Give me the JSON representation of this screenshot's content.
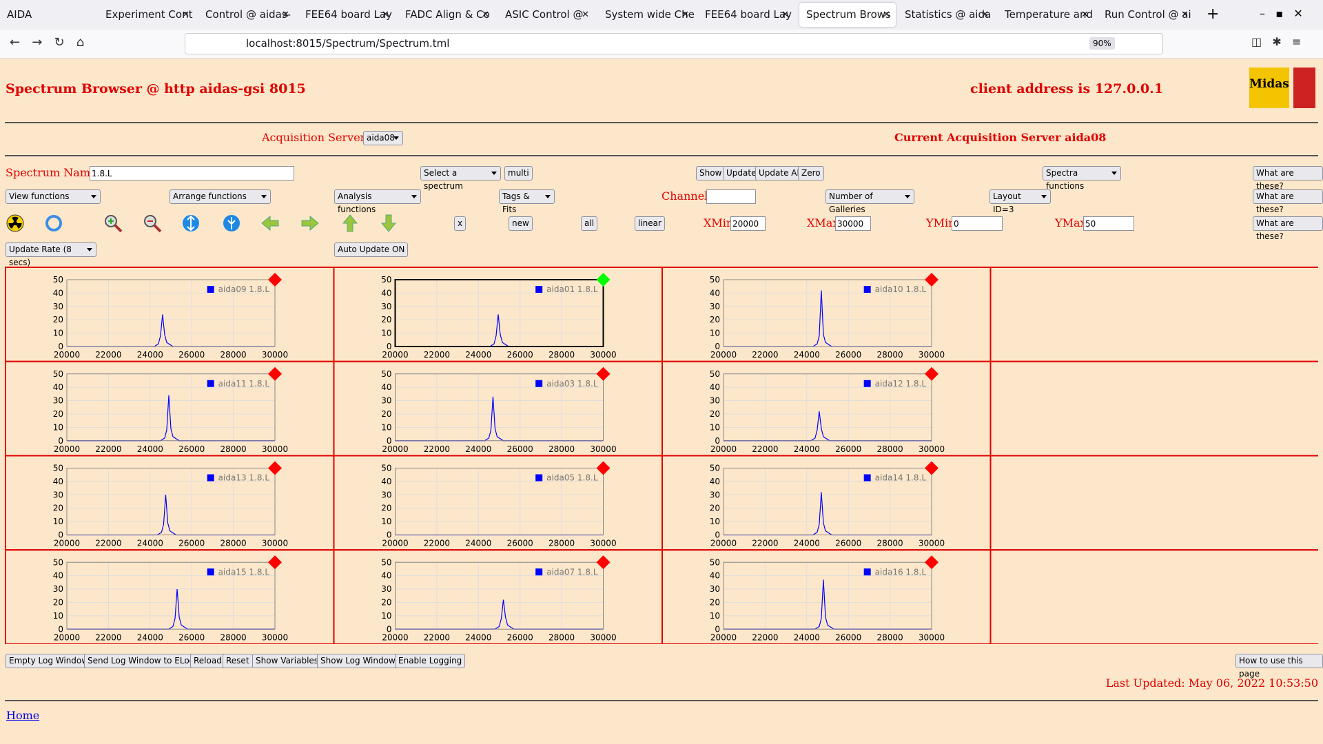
{
  "browser": {
    "tabs": [
      "AIDA",
      "Experiment Cont",
      "Control @ aidas-",
      "FEE64 board Lay",
      "FADC Align & Co",
      "ASIC Control @",
      "System wide Che",
      "FEE64 board Lay",
      "Spectrum Brows",
      "Statistics @ aida",
      "Temperature and",
      "Run Control @ ai"
    ],
    "url": "localhost:8015/Spectrum/Spectrum.tml",
    "zoom": "90%"
  },
  "header": {
    "title": "Spectrum Browser @ http aidas-gsi 8015",
    "client": "client address is 127.0.0.1",
    "logo": "Midas"
  },
  "servers": {
    "label": "Acquisition Servers",
    "selected": "aida08",
    "current": "Current Acquisition Server aida08"
  },
  "controls": {
    "spectrum_name_label": "Spectrum Name:",
    "spectrum_name": "1.8.L",
    "select_spectrum": "Select a spectrum",
    "multi": "multi",
    "show": "Show",
    "update": "Update",
    "update_all": "Update All",
    "zero": "Zero",
    "spectra_functions": "Spectra functions",
    "help": "What are these?",
    "view_functions": "View functions",
    "arrange_functions": "Arrange functions",
    "analysis_functions": "Analysis functions",
    "tags_fits": "Tags & Fits",
    "channel_label": "Channel:",
    "galleries": "Number of Galleries",
    "layout": "Layout ID=3",
    "x": "x",
    "new": "new",
    "all": "all",
    "linear": "linear",
    "xmin_label": "XMin",
    "xmin": 20000,
    "xmax_label": "XMax",
    "xmax": 30000,
    "ymin_label": "YMin",
    "ymin": 0,
    "ymax_label": "YMax",
    "ymax": 50,
    "update_rate": "Update Rate (8 secs)",
    "auto_update": "Auto Update ON"
  },
  "footer": {
    "buttons": [
      "Empty Log Window",
      "Send Log Window to ELog",
      "Reload",
      "Reset",
      "Show Variables",
      "Show Log Window",
      "Enable Logging"
    ],
    "how_to": "How to use this page",
    "last_updated": "Last Updated: May 06, 2022 10:53:50",
    "home": "Home"
  },
  "chart_data": [
    {
      "type": "line",
      "selected": false,
      "status_color": "#ff0000",
      "xlim": [
        20000,
        30000
      ],
      "ylim": [
        0,
        50
      ],
      "xticks": [
        20000,
        22000,
        24000,
        26000,
        28000,
        30000
      ],
      "yticks": [
        0,
        10,
        20,
        30,
        40,
        50
      ],
      "grid": true,
      "series": [
        {
          "name": "aida09 1.8.L",
          "color": "#0000ff",
          "x": [
            20000,
            24200,
            24400,
            24500,
            24600,
            24700,
            24800,
            25100,
            30000
          ],
          "values": [
            0,
            0,
            2,
            8,
            24,
            9,
            3,
            0,
            0
          ]
        }
      ]
    },
    {
      "type": "line",
      "selected": true,
      "status_color": "#00ff00",
      "xlim": [
        20000,
        30000
      ],
      "ylim": [
        0,
        50
      ],
      "xticks": [
        20000,
        22000,
        24000,
        26000,
        28000,
        30000
      ],
      "yticks": [
        0,
        10,
        20,
        30,
        40,
        50
      ],
      "grid": true,
      "series": [
        {
          "name": "aida01 1.8.L",
          "color": "#0000ff",
          "x": [
            20000,
            24550,
            24750,
            24850,
            24950,
            25050,
            25150,
            25450,
            30000
          ],
          "values": [
            0,
            0,
            2,
            8,
            24,
            9,
            3,
            0,
            0
          ]
        }
      ]
    },
    {
      "type": "line",
      "selected": false,
      "status_color": "#ff0000",
      "xlim": [
        20000,
        30000
      ],
      "ylim": [
        0,
        50
      ],
      "xticks": [
        20000,
        22000,
        24000,
        26000,
        28000,
        30000
      ],
      "yticks": [
        0,
        10,
        20,
        30,
        40,
        50
      ],
      "grid": true,
      "series": [
        {
          "name": "aida10 1.8.L",
          "color": "#0000ff",
          "x": [
            20000,
            24300,
            24500,
            24600,
            24700,
            24800,
            24900,
            25200,
            30000
          ],
          "values": [
            0,
            0,
            2,
            8,
            42,
            9,
            3,
            0,
            0
          ]
        }
      ]
    },
    {
      "type": "line",
      "selected": false,
      "status_color": "#ff0000",
      "xlim": [
        20000,
        30000
      ],
      "ylim": [
        0,
        50
      ],
      "xticks": [
        20000,
        22000,
        24000,
        26000,
        28000,
        30000
      ],
      "yticks": [
        0,
        10,
        20,
        30,
        40,
        50
      ],
      "grid": true,
      "series": [
        {
          "name": "aida11 1.8.L",
          "color": "#0000ff",
          "x": [
            20000,
            24500,
            24700,
            24800,
            24900,
            25000,
            25100,
            25400,
            30000
          ],
          "values": [
            0,
            0,
            2,
            8,
            34,
            9,
            3,
            0,
            0
          ]
        }
      ]
    },
    {
      "type": "line",
      "selected": false,
      "status_color": "#ff0000",
      "xlim": [
        20000,
        30000
      ],
      "ylim": [
        0,
        50
      ],
      "xticks": [
        20000,
        22000,
        24000,
        26000,
        28000,
        30000
      ],
      "yticks": [
        0,
        10,
        20,
        30,
        40,
        50
      ],
      "grid": true,
      "series": [
        {
          "name": "aida03 1.8.L",
          "color": "#0000ff",
          "x": [
            20000,
            24300,
            24500,
            24600,
            24700,
            24800,
            24900,
            25200,
            30000
          ],
          "values": [
            0,
            0,
            2,
            8,
            33,
            9,
            3,
            0,
            0
          ]
        }
      ]
    },
    {
      "type": "line",
      "selected": false,
      "status_color": "#ff0000",
      "xlim": [
        20000,
        30000
      ],
      "ylim": [
        0,
        50
      ],
      "xticks": [
        20000,
        22000,
        24000,
        26000,
        28000,
        30000
      ],
      "yticks": [
        0,
        10,
        20,
        30,
        40,
        50
      ],
      "grid": true,
      "series": [
        {
          "name": "aida12 1.8.L",
          "color": "#0000ff",
          "x": [
            20000,
            24200,
            24400,
            24500,
            24600,
            24700,
            24800,
            25100,
            30000
          ],
          "values": [
            0,
            0,
            2,
            8,
            22,
            9,
            3,
            0,
            0
          ]
        }
      ]
    },
    {
      "type": "line",
      "selected": false,
      "status_color": "#ff0000",
      "xlim": [
        20000,
        30000
      ],
      "ylim": [
        0,
        50
      ],
      "xticks": [
        20000,
        22000,
        24000,
        26000,
        28000,
        30000
      ],
      "yticks": [
        0,
        10,
        20,
        30,
        40,
        50
      ],
      "grid": true,
      "series": [
        {
          "name": "aida13 1.8.L",
          "color": "#0000ff",
          "x": [
            20000,
            24350,
            24550,
            24650,
            24750,
            24850,
            24950,
            25250,
            30000
          ],
          "values": [
            0,
            0,
            2,
            8,
            30,
            9,
            3,
            0,
            0
          ]
        }
      ]
    },
    {
      "type": "line",
      "selected": false,
      "status_color": "#ff0000",
      "xlim": [
        20000,
        30000
      ],
      "ylim": [
        0,
        50
      ],
      "xticks": [
        20000,
        22000,
        24000,
        26000,
        28000,
        30000
      ],
      "yticks": [
        0,
        10,
        20,
        30,
        40,
        50
      ],
      "grid": true,
      "series": [
        {
          "name": "aida05 1.8.L",
          "color": "#0000ff",
          "x": [
            20000,
            30000
          ],
          "values": [
            0,
            0
          ]
        }
      ]
    },
    {
      "type": "line",
      "selected": false,
      "status_color": "#ff0000",
      "xlim": [
        20000,
        30000
      ],
      "ylim": [
        0,
        50
      ],
      "xticks": [
        20000,
        22000,
        24000,
        26000,
        28000,
        30000
      ],
      "yticks": [
        0,
        10,
        20,
        30,
        40,
        50
      ],
      "grid": true,
      "series": [
        {
          "name": "aida14 1.8.L",
          "color": "#0000ff",
          "x": [
            20000,
            24300,
            24500,
            24600,
            24700,
            24800,
            24900,
            25200,
            30000
          ],
          "values": [
            0,
            0,
            2,
            8,
            32,
            9,
            3,
            0,
            0
          ]
        }
      ]
    },
    {
      "type": "line",
      "selected": false,
      "status_color": "#ff0000",
      "xlim": [
        20000,
        30000
      ],
      "ylim": [
        0,
        50
      ],
      "xticks": [
        20000,
        22000,
        24000,
        26000,
        28000,
        30000
      ],
      "yticks": [
        0,
        10,
        20,
        30,
        40,
        50
      ],
      "grid": true,
      "series": [
        {
          "name": "aida15 1.8.L",
          "color": "#0000ff",
          "x": [
            20000,
            24900,
            25100,
            25200,
            25300,
            25400,
            25500,
            25800,
            30000
          ],
          "values": [
            0,
            0,
            2,
            8,
            30,
            9,
            3,
            0,
            0
          ]
        }
      ]
    },
    {
      "type": "line",
      "selected": false,
      "status_color": "#ff0000",
      "xlim": [
        20000,
        30000
      ],
      "ylim": [
        0,
        50
      ],
      "xticks": [
        20000,
        22000,
        24000,
        26000,
        28000,
        30000
      ],
      "yticks": [
        0,
        10,
        20,
        30,
        40,
        50
      ],
      "grid": true,
      "series": [
        {
          "name": "aida07 1.8.L",
          "color": "#0000ff",
          "x": [
            20000,
            24800,
            25000,
            25100,
            25200,
            25300,
            25400,
            25700,
            30000
          ],
          "values": [
            0,
            0,
            2,
            8,
            22,
            9,
            3,
            0,
            0
          ]
        }
      ]
    },
    {
      "type": "line",
      "selected": false,
      "status_color": "#ff0000",
      "xlim": [
        20000,
        30000
      ],
      "ylim": [
        0,
        50
      ],
      "xticks": [
        20000,
        22000,
        24000,
        26000,
        28000,
        30000
      ],
      "yticks": [
        0,
        10,
        20,
        30,
        40,
        50
      ],
      "grid": true,
      "series": [
        {
          "name": "aida16 1.8.L",
          "color": "#0000ff",
          "x": [
            20000,
            24400,
            24600,
            24700,
            24800,
            24900,
            25000,
            25300,
            30000
          ],
          "values": [
            0,
            0,
            2,
            8,
            37,
            9,
            3,
            0,
            0
          ]
        }
      ]
    }
  ]
}
